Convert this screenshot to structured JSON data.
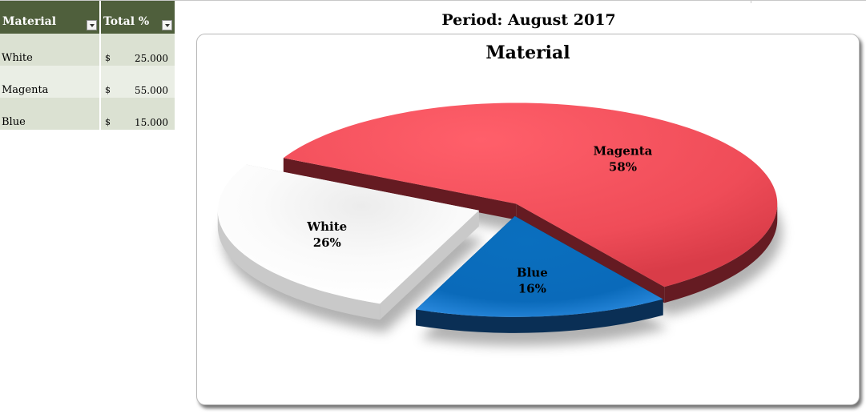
{
  "table": {
    "headers": [
      "Material",
      "Total %"
    ],
    "rows": [
      {
        "material": "White",
        "currency": "$",
        "value": "25.000"
      },
      {
        "material": "Magenta",
        "currency": "$",
        "value": "55.000"
      },
      {
        "material": "Blue",
        "currency": "$",
        "value": "15.000"
      }
    ]
  },
  "icons": {
    "filter_dropdown": "chevron-down-icon"
  },
  "chart_data": {
    "type": "pie",
    "title": "Material",
    "subtitle": "Period: August 2017",
    "legend": "none",
    "slices": [
      {
        "name": "White",
        "value": 25,
        "label": "White",
        "percent_label": "26%",
        "color": "#ffffff"
      },
      {
        "name": "Magenta",
        "value": 55,
        "label": "Magenta",
        "percent_label": "58%",
        "color": "#f0515c"
      },
      {
        "name": "Blue",
        "value": 15,
        "label": "Blue",
        "percent_label": "16%",
        "color": "#1773c8"
      }
    ]
  }
}
